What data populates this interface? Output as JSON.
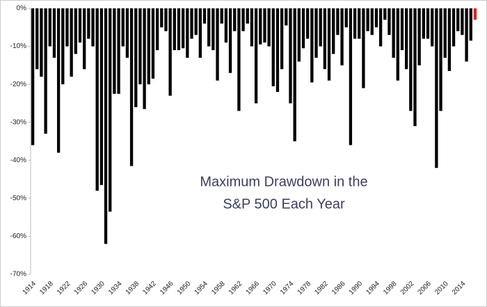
{
  "chart_data": {
    "type": "bar",
    "annotation_lines": [
      "Maximum Drawdown in the",
      "S&P 500 Each Year"
    ],
    "categories": [
      "1914",
      null,
      null,
      null,
      "1918",
      null,
      null,
      null,
      "1922",
      null,
      null,
      null,
      "1926",
      null,
      null,
      null,
      "1930",
      null,
      null,
      null,
      "1934",
      null,
      null,
      null,
      "1938",
      null,
      null,
      null,
      "1942",
      null,
      null,
      null,
      "1946",
      null,
      null,
      null,
      "1950",
      null,
      null,
      null,
      "1954",
      null,
      null,
      null,
      "1958",
      null,
      null,
      null,
      "1962",
      null,
      null,
      null,
      "1966",
      null,
      null,
      null,
      "1970",
      null,
      null,
      null,
      "1974",
      null,
      null,
      null,
      "1978",
      null,
      null,
      null,
      "1982",
      null,
      null,
      null,
      "1986",
      null,
      null,
      null,
      "1990",
      null,
      null,
      null,
      "1994",
      null,
      null,
      null,
      "1998",
      null,
      null,
      null,
      "2002",
      null,
      null,
      null,
      "2006",
      null,
      null,
      null,
      "2010",
      null,
      null,
      null,
      "2014",
      null,
      null,
      null
    ],
    "values": [
      -36,
      -16,
      -18,
      -33,
      -10,
      -13,
      -38,
      -20,
      -10,
      -18,
      -12,
      -9,
      -16,
      -8,
      -10,
      -48,
      -46.5,
      -62,
      -53.5,
      -22.5,
      -22.5,
      -10,
      -13,
      -41.5,
      -26,
      -20,
      -26.5,
      -20,
      -18.5,
      -11,
      -5,
      -6,
      -23,
      -11,
      -11,
      -10.5,
      -13,
      -8,
      -7,
      -13,
      -4,
      -10,
      -11,
      -19,
      -4,
      -9,
      -17,
      -6,
      -27,
      -6,
      -4,
      -10,
      -25,
      -9.5,
      -9,
      -10,
      -20.5,
      -22,
      -16,
      -4.5,
      -25,
      -35,
      -14,
      -10.5,
      -8,
      -19.5,
      -13,
      -10,
      -16,
      -19,
      -12,
      -7,
      -15,
      -5,
      -36,
      -8,
      -8,
      -21,
      -6,
      -7,
      -5,
      -10,
      -3,
      -7,
      -13,
      -19,
      -11,
      -16,
      -27,
      -31,
      -15,
      -8,
      -8,
      -10,
      -42,
      -27,
      -13,
      -16.5,
      -10,
      -6,
      -7,
      -14,
      -8.5,
      -3
    ],
    "colors": [
      "#000",
      "#000",
      "#000",
      "#000",
      "#000",
      "#000",
      "#000",
      "#000",
      "#000",
      "#000",
      "#000",
      "#000",
      "#000",
      "#000",
      "#000",
      "#000",
      "#000",
      "#000",
      "#000",
      "#000",
      "#000",
      "#000",
      "#000",
      "#000",
      "#000",
      "#000",
      "#000",
      "#000",
      "#000",
      "#000",
      "#000",
      "#000",
      "#000",
      "#000",
      "#000",
      "#000",
      "#000",
      "#000",
      "#000",
      "#000",
      "#000",
      "#000",
      "#000",
      "#000",
      "#000",
      "#000",
      "#000",
      "#000",
      "#000",
      "#000",
      "#000",
      "#000",
      "#000",
      "#000",
      "#000",
      "#000",
      "#000",
      "#000",
      "#000",
      "#000",
      "#000",
      "#000",
      "#000",
      "#000",
      "#000",
      "#000",
      "#000",
      "#000",
      "#000",
      "#000",
      "#000",
      "#000",
      "#000",
      "#000",
      "#000",
      "#000",
      "#000",
      "#000",
      "#000",
      "#000",
      "#000",
      "#000",
      "#000",
      "#000",
      "#000",
      "#000",
      "#000",
      "#000",
      "#000",
      "#000",
      "#000",
      "#000",
      "#000",
      "#000",
      "#000",
      "#000",
      "#000",
      "#000",
      "#000",
      "#000",
      "#000",
      "#000",
      "#000",
      "#e8201c"
    ],
    "ylim": [
      -70,
      0
    ],
    "yticks": [
      {
        "value": 0,
        "label": "0%"
      },
      {
        "value": -10,
        "label": "-10%"
      },
      {
        "value": -20,
        "label": "-20%"
      },
      {
        "value": -30,
        "label": "-30%"
      },
      {
        "value": -40,
        "label": "-40%"
      },
      {
        "value": -50,
        "label": "-50%"
      },
      {
        "value": -60,
        "label": "-60%"
      },
      {
        "value": -70,
        "label": "-70%"
      }
    ],
    "grid": false
  }
}
